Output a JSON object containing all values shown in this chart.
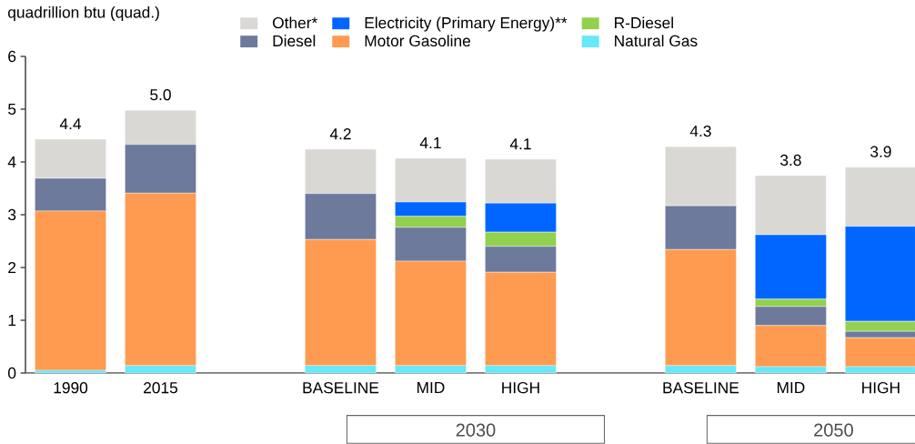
{
  "chart_data": {
    "type": "bar",
    "stacked": true,
    "ylabel": "quadrillion btu (quad.)",
    "categories": [
      "1990",
      "2015",
      "BASELINE",
      "MID",
      "HIGH",
      "BASELINE",
      "MID",
      "HIGH"
    ],
    "series": [
      {
        "name": "Natural Gas",
        "color": "#66e8f8",
        "values": [
          0.05,
          0.14,
          0.14,
          0.14,
          0.14,
          0.14,
          0.12,
          0.12
        ]
      },
      {
        "name": "Motor Gasoline",
        "color": "#ff9b50",
        "values": [
          3.02,
          3.27,
          2.39,
          1.98,
          1.77,
          2.2,
          0.78,
          0.55
        ]
      },
      {
        "name": "Diesel",
        "color": "#6d7a9c",
        "values": [
          0.62,
          0.92,
          0.87,
          0.64,
          0.49,
          0.83,
          0.36,
          0.12
        ]
      },
      {
        "name": "R-Diesel",
        "color": "#92d050",
        "values": [
          0,
          0,
          0,
          0.21,
          0.27,
          0,
          0.14,
          0.19
        ]
      },
      {
        "name": "Electricity (Primary Energy)**",
        "color": "#0066ff",
        "values": [
          0,
          0,
          0,
          0.27,
          0.55,
          0,
          1.22,
          1.8
        ]
      },
      {
        "name": "Other*",
        "color": "#d9d8d4",
        "values": [
          0.74,
          0.65,
          0.84,
          0.83,
          0.83,
          1.12,
          1.12,
          1.12
        ]
      }
    ],
    "totals": [
      "4.4",
      "5.0",
      "4.2",
      "4.1",
      "4.1",
      "4.3",
      "3.8",
      "3.9"
    ],
    "annotations": [
      "2030",
      "2050"
    ],
    "ylim": [
      0,
      6
    ],
    "yticks": [
      0,
      1,
      2,
      3,
      4,
      5,
      6
    ],
    "grid": false,
    "legend": "top"
  }
}
